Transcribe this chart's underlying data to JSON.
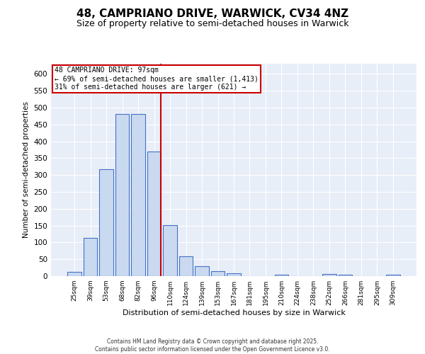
{
  "title_line1": "48, CAMPRIANO DRIVE, WARWICK, CV34 4NZ",
  "title_line2": "Size of property relative to semi-detached houses in Warwick",
  "xlabel": "Distribution of semi-detached houses by size in Warwick",
  "ylabel": "Number of semi-detached properties",
  "categories": [
    "25sqm",
    "39sqm",
    "53sqm",
    "68sqm",
    "82sqm",
    "96sqm",
    "110sqm",
    "124sqm",
    "139sqm",
    "153sqm",
    "167sqm",
    "181sqm",
    "195sqm",
    "210sqm",
    "224sqm",
    "238sqm",
    "252sqm",
    "266sqm",
    "281sqm",
    "295sqm",
    "309sqm"
  ],
  "values": [
    13,
    113,
    317,
    480,
    480,
    370,
    152,
    58,
    30,
    15,
    9,
    0,
    0,
    5,
    0,
    0,
    6,
    5,
    0,
    0,
    5
  ],
  "bar_color": "#c9d9f0",
  "bar_edge_color": "#4472c4",
  "vline_x_idx": 5,
  "vline_color": "#cc0000",
  "annotation_text": "48 CAMPRIANO DRIVE: 97sqm\n← 69% of semi-detached houses are smaller (1,413)\n31% of semi-detached houses are larger (621) →",
  "annotation_box_color": "#cc0000",
  "ylim": [
    0,
    630
  ],
  "yticks": [
    0,
    50,
    100,
    150,
    200,
    250,
    300,
    350,
    400,
    450,
    500,
    550,
    600
  ],
  "footer_line1": "Contains HM Land Registry data © Crown copyright and database right 2025.",
  "footer_line2": "Contains public sector information licensed under the Open Government Licence v3.0.",
  "bg_color": "#e8eef8",
  "title_fontsize": 11,
  "subtitle_fontsize": 9,
  "bar_width": 0.85
}
